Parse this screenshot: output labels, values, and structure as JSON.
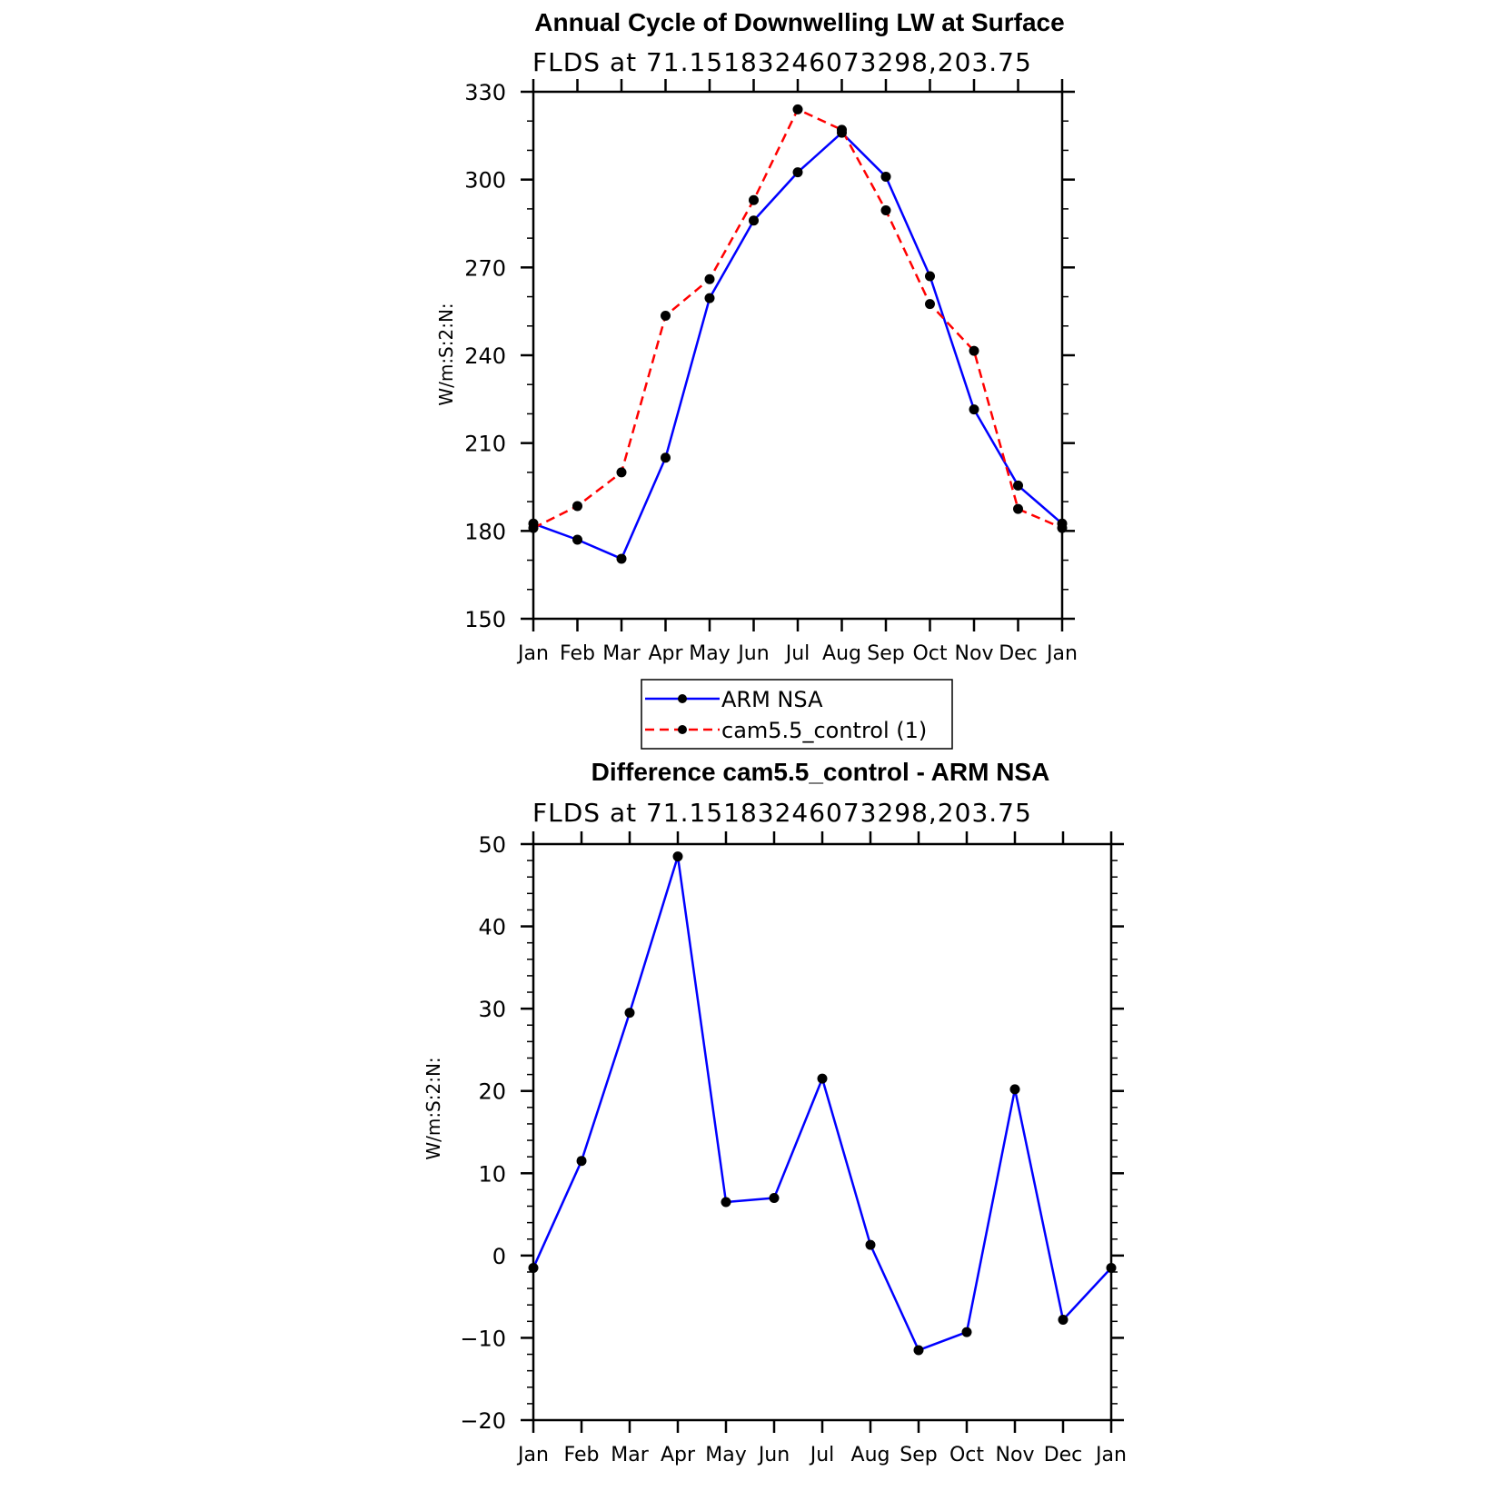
{
  "chart_data": [
    {
      "type": "line",
      "title": "Annual Cycle of Downwelling LW at Surface",
      "subtitle": "FLDS at 71.15183246073298,203.75",
      "xlabel": "",
      "ylabel": "W/m:S:2:N:",
      "categories": [
        "Jan",
        "Feb",
        "Mar",
        "Apr",
        "May",
        "Jun",
        "Jul",
        "Aug",
        "Sep",
        "Oct",
        "Nov",
        "Dec",
        "Jan"
      ],
      "ylim": [
        150,
        330
      ],
      "yticks": [
        "150",
        "180",
        "210",
        "240",
        "270",
        "300",
        "330"
      ],
      "legend_position": "bottom-center",
      "series": [
        {
          "name": "ARM NSA",
          "color": "#0000ff",
          "style": "solid",
          "values": [
            182.5,
            177,
            170.5,
            205,
            259.5,
            286,
            302.5,
            316,
            301,
            267,
            221.5,
            195.5,
            182.5
          ]
        },
        {
          "name": "cam5.5_control (1)",
          "color": "#ff0000",
          "style": "dashed",
          "values": [
            181,
            188.5,
            200,
            253.5,
            266,
            293,
            324,
            317,
            289.5,
            257.5,
            241.5,
            187.5,
            181
          ]
        }
      ]
    },
    {
      "type": "line",
      "title": "Difference cam5.5_control - ARM NSA",
      "subtitle": "FLDS at 71.15183246073298,203.75",
      "xlabel": "",
      "ylabel": "W/m:S:2:N:",
      "categories": [
        "Jan",
        "Feb",
        "Mar",
        "Apr",
        "May",
        "Jun",
        "Jul",
        "Aug",
        "Sep",
        "Oct",
        "Nov",
        "Dec",
        "Jan"
      ],
      "ylim": [
        -20,
        50
      ],
      "yticks": [
        "−20",
        "−10",
        "0",
        "10",
        "20",
        "30",
        "40",
        "50"
      ],
      "series": [
        {
          "color": "#0000ff",
          "style": "solid",
          "values": [
            -1.5,
            11.5,
            29.5,
            48.5,
            6.5,
            7,
            21.5,
            1.3,
            -11.5,
            -9.3,
            20.2,
            -7.8,
            -1.5
          ]
        }
      ]
    }
  ]
}
